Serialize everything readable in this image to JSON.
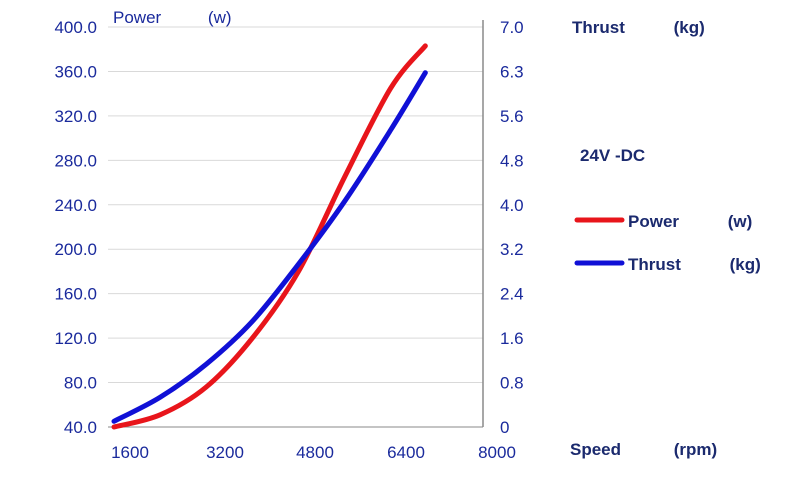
{
  "chart_data": {
    "type": "line",
    "annotation": "24V -DC",
    "y_left": {
      "label": "Power",
      "unit": "(w)",
      "ylim": [
        40,
        400
      ],
      "ticks": [
        "40.0",
        "80.0",
        "120.0",
        "160.0",
        "200.0",
        "240.0",
        "280.0",
        "320.0",
        "360.0",
        "400.0"
      ]
    },
    "y_right": {
      "label": "Thrust",
      "unit": "(kg)",
      "ylim": [
        0,
        7
      ],
      "ticks": [
        "0",
        "0.8",
        "1.6",
        "2.4",
        "3.2",
        "4.0",
        "4.8",
        "5.6",
        "6.3",
        "7.0"
      ]
    },
    "x_axis": {
      "label": "Speed",
      "unit": "(rpm)",
      "ticks": [
        "1600",
        "3200",
        "4800",
        "6400",
        "8000"
      ]
    },
    "legend": {
      "position": "right"
    },
    "series": [
      {
        "name": "Power",
        "unit": "(w)",
        "axis": "left",
        "color": "#e8151b",
        "x": [
          1600,
          2400,
          3200,
          4000,
          4800,
          5600,
          6400,
          7000
        ],
        "y": [
          40,
          51,
          76,
          120,
          180,
          265,
          345,
          383
        ]
      },
      {
        "name": "Thrust",
        "unit": "(kg)",
        "axis": "right",
        "color": "#1010d6",
        "x": [
          1600,
          2400,
          3200,
          4000,
          4800,
          5600,
          6400,
          7000
        ],
        "y": [
          0.1,
          0.52,
          1.1,
          1.85,
          2.85,
          3.95,
          5.2,
          6.2
        ]
      }
    ]
  }
}
